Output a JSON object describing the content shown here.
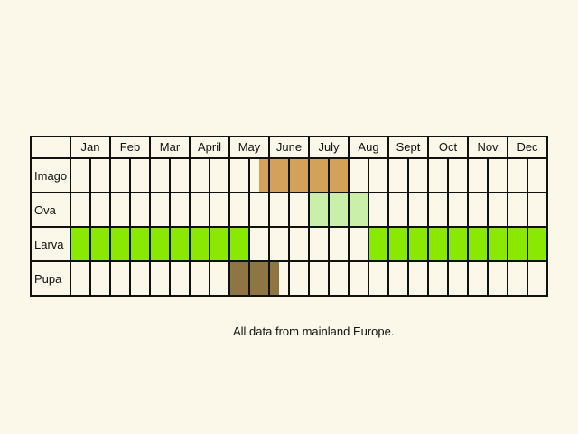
{
  "chart_data": {
    "type": "table",
    "title": "",
    "months": [
      "Jan",
      "Feb",
      "Mar",
      "April",
      "May",
      "June",
      "July",
      "Aug",
      "Sept",
      "Oct",
      "Nov",
      "Dec"
    ],
    "half_months_per_month": 2,
    "rows": [
      {
        "label": "Imago",
        "color": "#d4a15a",
        "active": [
          {
            "from": 9.5,
            "to": 14.0
          }
        ]
      },
      {
        "label": "Ova",
        "color": "#c9efaa",
        "active": [
          {
            "from": 12.0,
            "to": 15.0
          }
        ]
      },
      {
        "label": "Larva",
        "color": "#8be800",
        "active": [
          {
            "from": 0,
            "to": 9.0
          },
          {
            "from": 15.0,
            "to": 24.0
          }
        ]
      },
      {
        "label": "Pupa",
        "color": "#8e7544",
        "active": [
          {
            "from": 8.0,
            "to": 10.5
          }
        ]
      }
    ],
    "grid_color": "#111111",
    "background": "#fbf8e9"
  },
  "footnote": "All data from mainland Europe."
}
